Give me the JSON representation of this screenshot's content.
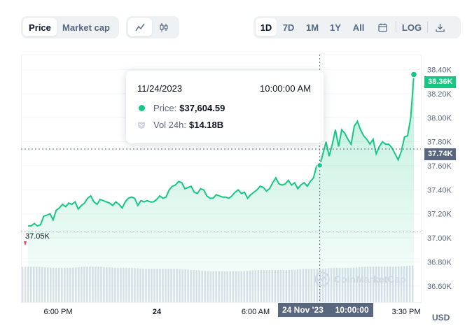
{
  "tabs": {
    "price": "Price",
    "market_cap": "Market cap"
  },
  "ranges": [
    "1D",
    "7D",
    "1M",
    "1Y",
    "All"
  ],
  "log_label": "LOG",
  "icons": {
    "line": "line-chart-icon",
    "candle": "candlestick-icon",
    "calendar": "calendar-icon",
    "download": "download-icon"
  },
  "tooltip": {
    "date": "11/24/2023",
    "time": "10:00:00 AM",
    "price_label": "Price:",
    "price_value": "$37,604.59",
    "vol_label": "Vol 24h:",
    "vol_value": "$14.18B"
  },
  "watermark": "CoinMarketCap",
  "currency": "USD",
  "current_tag": "38.36K",
  "cursor_tag": "37.74K",
  "low_label": "37.05K",
  "cursor_x_date": "24 Nov '23",
  "cursor_x_time": "10:00:00",
  "colors": {
    "line": "#16c784",
    "cursor_tag": "#58667e",
    "low_marker": "#ea3943"
  },
  "chart_data": {
    "type": "area",
    "y_ticks": [
      "38.40K",
      "38.20K",
      "38.00K",
      "37.80K",
      "37.60K",
      "37.40K",
      "37.20K",
      "37.00K",
      "36.80K",
      "36.60K"
    ],
    "x_ticks": [
      "6:00 PM",
      "24",
      "6:00 AM",
      "3:30 PM"
    ],
    "ylim": [
      36500,
      38450
    ],
    "points": [
      37100,
      37100,
      37120,
      37100,
      37110,
      37180,
      37190,
      37200,
      37150,
      37230,
      37250,
      37280,
      37260,
      37290,
      37280,
      37300,
      37240,
      37270,
      37290,
      37330,
      37350,
      37300,
      37280,
      37320,
      37310,
      37300,
      37290,
      37270,
      37300,
      37280,
      37250,
      37300,
      37330,
      37340,
      37330,
      37270,
      37310,
      37300,
      37310,
      37300,
      37300,
      37320,
      37350,
      37330,
      37340,
      37400,
      37430,
      37440,
      37470,
      37460,
      37410,
      37420,
      37430,
      37380,
      37370,
      37410,
      37400,
      37350,
      37330,
      37330,
      37360,
      37350,
      37340,
      37340,
      37330,
      37350,
      37380,
      37400,
      37370,
      37380,
      37330,
      37360,
      37380,
      37400,
      37430,
      37420,
      37390,
      37410,
      37460,
      37500,
      37450,
      37440,
      37450,
      37480,
      37440,
      37460,
      37410,
      37440,
      37460,
      37430,
      37470,
      37500,
      37600,
      37604,
      37700,
      37800,
      37680,
      37780,
      37900,
      37760,
      37900,
      37870,
      37820,
      37780,
      37930,
      37970,
      37900,
      37850,
      37820,
      37780,
      37820,
      37700,
      37760,
      37800,
      37780,
      37780,
      37750,
      37700,
      37650,
      37720,
      37840,
      37850,
      38000,
      38360
    ],
    "volume_label": "Vol 24h",
    "volume_values": [
      14.4,
      14.4,
      14.3,
      14.3,
      14.4,
      14.4,
      14.3,
      14.3,
      14.2,
      14.2,
      14.2,
      14.1,
      14.0,
      14.0,
      14.0,
      14.1,
      14.1,
      14.1,
      14.2,
      14.2,
      14.3,
      14.3,
      14.4,
      14.4,
      14.4,
      14.5
    ]
  }
}
